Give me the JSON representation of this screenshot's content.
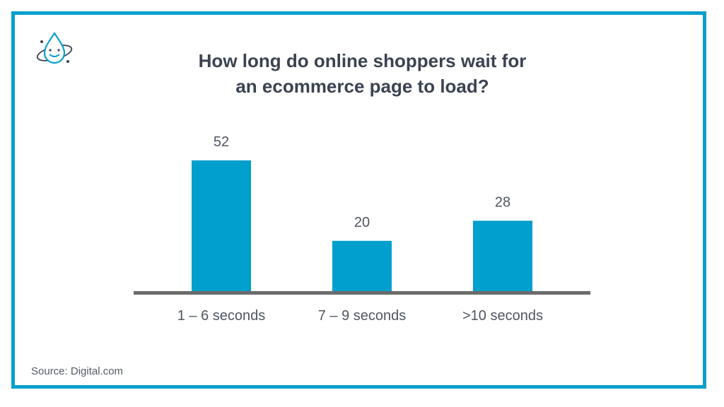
{
  "title_lines": [
    "How long do online shoppers wait for",
    "an ecommerce page to load?"
  ],
  "source": "Source: Digital.com",
  "logo_icon": "drop-atom-logo-icon",
  "colors": {
    "border": "#0aa0cc",
    "bar": "#009fcc",
    "axis": "#6b6b6b",
    "title": "#3b4352",
    "label": "#4f5560"
  },
  "chart_data": {
    "type": "bar",
    "title": "How long do online shoppers wait for an ecommerce page to load?",
    "categories": [
      "1 – 6 seconds",
      "7 – 9 seconds",
      ">10 seconds"
    ],
    "values": [
      52,
      20,
      28
    ],
    "data_labels": [
      "52",
      "20",
      "28"
    ],
    "xlabel": "",
    "ylabel": "",
    "ylim": [
      0,
      52
    ],
    "grid": false,
    "legend": "none"
  }
}
